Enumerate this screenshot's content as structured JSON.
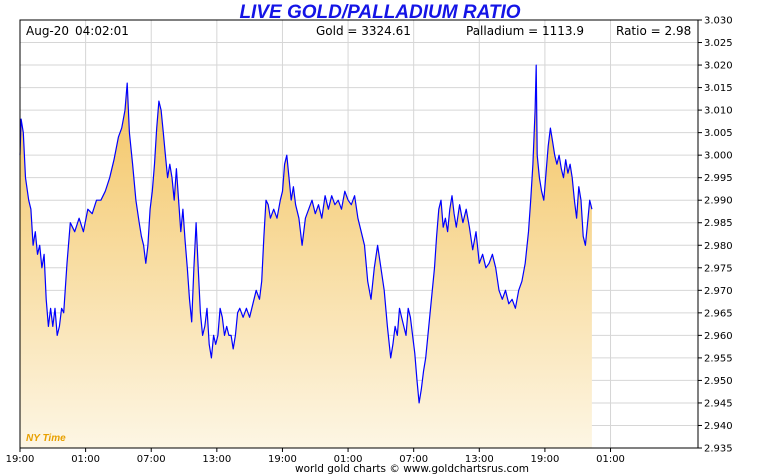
{
  "header": {
    "date": "Aug-20",
    "time": "04:02:01",
    "gold": "Gold = 3324.61",
    "palladium": "Palladium = 1113.9",
    "ratio": "Ratio = 2.98"
  },
  "footer": "world gold charts © www.goldchartsrus.com",
  "colors": {
    "line": "#0000ff",
    "fill_top": "#f3c25c",
    "fill_bottom": "#fdf6e4",
    "title": "#1414e6",
    "timezone": "#e8a000"
  },
  "chart_data": {
    "type": "area",
    "title": "LIVE GOLD/PALLADIUM RATIO",
    "timezone_label": "NY Time",
    "xlabel": "",
    "ylabel": "",
    "ylim": [
      2.935,
      3.03
    ],
    "xlim": [
      0,
      62
    ],
    "grid": true,
    "yticks": [
      "2.935",
      "2.940",
      "2.945",
      "2.950",
      "2.955",
      "2.960",
      "2.965",
      "2.970",
      "2.975",
      "2.980",
      "2.985",
      "2.990",
      "2.995",
      "3.000",
      "3.005",
      "3.010",
      "3.015",
      "3.020",
      "3.025",
      "3.030"
    ],
    "xticks": [
      {
        "x": 0,
        "label": "19:00"
      },
      {
        "x": 6,
        "label": "01:00"
      },
      {
        "x": 12,
        "label": "07:00"
      },
      {
        "x": 18,
        "label": "13:00"
      },
      {
        "x": 24,
        "label": "19:00"
      },
      {
        "x": 30,
        "label": "01:00"
      },
      {
        "x": 36,
        "label": "07:00"
      },
      {
        "x": 42,
        "label": "13:00"
      },
      {
        "x": 48,
        "label": "19:00"
      },
      {
        "x": 54,
        "label": "01:00"
      }
    ],
    "series": [
      {
        "points": [
          [
            0.0,
            3.0
          ],
          [
            0.1,
            3.008
          ],
          [
            0.3,
            3.005
          ],
          [
            0.5,
            2.995
          ],
          [
            0.8,
            2.99
          ],
          [
            1.0,
            2.988
          ],
          [
            1.2,
            2.98
          ],
          [
            1.4,
            2.983
          ],
          [
            1.6,
            2.978
          ],
          [
            1.8,
            2.98
          ],
          [
            2.0,
            2.975
          ],
          [
            2.2,
            2.978
          ],
          [
            2.4,
            2.968
          ],
          [
            2.6,
            2.962
          ],
          [
            2.8,
            2.966
          ],
          [
            3.0,
            2.962
          ],
          [
            3.2,
            2.966
          ],
          [
            3.4,
            2.96
          ],
          [
            3.6,
            2.962
          ],
          [
            3.8,
            2.966
          ],
          [
            4.0,
            2.965
          ],
          [
            4.3,
            2.976
          ],
          [
            4.6,
            2.985
          ],
          [
            5.0,
            2.983
          ],
          [
            5.4,
            2.986
          ],
          [
            5.8,
            2.983
          ],
          [
            6.2,
            2.988
          ],
          [
            6.6,
            2.987
          ],
          [
            7.0,
            2.99
          ],
          [
            7.4,
            2.99
          ],
          [
            7.8,
            2.992
          ],
          [
            8.2,
            2.995
          ],
          [
            8.6,
            2.999
          ],
          [
            9.0,
            3.004
          ],
          [
            9.3,
            3.006
          ],
          [
            9.6,
            3.01
          ],
          [
            9.8,
            3.016
          ],
          [
            10.0,
            3.005
          ],
          [
            10.3,
            2.998
          ],
          [
            10.6,
            2.99
          ],
          [
            10.9,
            2.985
          ],
          [
            11.1,
            2.982
          ],
          [
            11.3,
            2.98
          ],
          [
            11.5,
            2.976
          ],
          [
            11.7,
            2.98
          ],
          [
            11.9,
            2.988
          ],
          [
            12.1,
            2.992
          ],
          [
            12.3,
            2.998
          ],
          [
            12.5,
            3.006
          ],
          [
            12.7,
            3.012
          ],
          [
            12.9,
            3.01
          ],
          [
            13.1,
            3.005
          ],
          [
            13.3,
            3.0
          ],
          [
            13.5,
            2.995
          ],
          [
            13.7,
            2.998
          ],
          [
            13.9,
            2.995
          ],
          [
            14.1,
            2.99
          ],
          [
            14.3,
            2.997
          ],
          [
            14.5,
            2.99
          ],
          [
            14.7,
            2.983
          ],
          [
            14.9,
            2.988
          ],
          [
            15.1,
            2.981
          ],
          [
            15.3,
            2.975
          ],
          [
            15.5,
            2.968
          ],
          [
            15.7,
            2.963
          ],
          [
            15.9,
            2.975
          ],
          [
            16.1,
            2.985
          ],
          [
            16.3,
            2.975
          ],
          [
            16.5,
            2.965
          ],
          [
            16.7,
            2.96
          ],
          [
            16.9,
            2.962
          ],
          [
            17.1,
            2.966
          ],
          [
            17.3,
            2.958
          ],
          [
            17.5,
            2.955
          ],
          [
            17.7,
            2.96
          ],
          [
            17.9,
            2.958
          ],
          [
            18.1,
            2.96
          ],
          [
            18.3,
            2.966
          ],
          [
            18.5,
            2.964
          ],
          [
            18.7,
            2.96
          ],
          [
            18.9,
            2.962
          ],
          [
            19.1,
            2.96
          ],
          [
            19.3,
            2.96
          ],
          [
            19.5,
            2.957
          ],
          [
            19.7,
            2.96
          ],
          [
            19.9,
            2.965
          ],
          [
            20.1,
            2.966
          ],
          [
            20.4,
            2.964
          ],
          [
            20.7,
            2.966
          ],
          [
            21.0,
            2.964
          ],
          [
            21.3,
            2.967
          ],
          [
            21.6,
            2.97
          ],
          [
            21.9,
            2.968
          ],
          [
            22.1,
            2.972
          ],
          [
            22.3,
            2.982
          ],
          [
            22.5,
            2.99
          ],
          [
            22.7,
            2.989
          ],
          [
            22.9,
            2.986
          ],
          [
            23.2,
            2.988
          ],
          [
            23.5,
            2.986
          ],
          [
            23.8,
            2.99
          ],
          [
            24.0,
            2.992
          ],
          [
            24.2,
            2.998
          ],
          [
            24.4,
            3.0
          ],
          [
            24.6,
            2.995
          ],
          [
            24.8,
            2.99
          ],
          [
            25.0,
            2.993
          ],
          [
            25.2,
            2.989
          ],
          [
            25.5,
            2.986
          ],
          [
            25.8,
            2.98
          ],
          [
            26.1,
            2.986
          ],
          [
            26.4,
            2.988
          ],
          [
            26.7,
            2.99
          ],
          [
            27.0,
            2.987
          ],
          [
            27.3,
            2.989
          ],
          [
            27.6,
            2.986
          ],
          [
            27.9,
            2.991
          ],
          [
            28.2,
            2.988
          ],
          [
            28.5,
            2.991
          ],
          [
            28.8,
            2.989
          ],
          [
            29.1,
            2.99
          ],
          [
            29.4,
            2.988
          ],
          [
            29.7,
            2.992
          ],
          [
            30.0,
            2.99
          ],
          [
            30.3,
            2.989
          ],
          [
            30.6,
            2.991
          ],
          [
            30.9,
            2.986
          ],
          [
            31.2,
            2.983
          ],
          [
            31.5,
            2.98
          ],
          [
            31.8,
            2.972
          ],
          [
            32.1,
            2.968
          ],
          [
            32.4,
            2.975
          ],
          [
            32.7,
            2.98
          ],
          [
            33.0,
            2.975
          ],
          [
            33.3,
            2.97
          ],
          [
            33.6,
            2.962
          ],
          [
            33.9,
            2.955
          ],
          [
            34.1,
            2.958
          ],
          [
            34.3,
            2.962
          ],
          [
            34.5,
            2.96
          ],
          [
            34.7,
            2.966
          ],
          [
            34.9,
            2.964
          ],
          [
            35.1,
            2.962
          ],
          [
            35.3,
            2.96
          ],
          [
            35.5,
            2.966
          ],
          [
            35.7,
            2.964
          ],
          [
            35.9,
            2.96
          ],
          [
            36.1,
            2.956
          ],
          [
            36.3,
            2.95
          ],
          [
            36.5,
            2.945
          ],
          [
            36.7,
            2.948
          ],
          [
            36.9,
            2.952
          ],
          [
            37.1,
            2.955
          ],
          [
            37.3,
            2.96
          ],
          [
            37.5,
            2.965
          ],
          [
            37.7,
            2.97
          ],
          [
            37.9,
            2.975
          ],
          [
            38.1,
            2.982
          ],
          [
            38.3,
            2.988
          ],
          [
            38.5,
            2.99
          ],
          [
            38.7,
            2.984
          ],
          [
            38.9,
            2.986
          ],
          [
            39.1,
            2.983
          ],
          [
            39.3,
            2.988
          ],
          [
            39.5,
            2.991
          ],
          [
            39.7,
            2.987
          ],
          [
            39.9,
            2.984
          ],
          [
            40.2,
            2.989
          ],
          [
            40.5,
            2.985
          ],
          [
            40.8,
            2.988
          ],
          [
            41.1,
            2.984
          ],
          [
            41.4,
            2.979
          ],
          [
            41.7,
            2.983
          ],
          [
            42.0,
            2.976
          ],
          [
            42.3,
            2.978
          ],
          [
            42.6,
            2.975
          ],
          [
            42.9,
            2.976
          ],
          [
            43.2,
            2.978
          ],
          [
            43.5,
            2.975
          ],
          [
            43.8,
            2.97
          ],
          [
            44.1,
            2.968
          ],
          [
            44.4,
            2.97
          ],
          [
            44.7,
            2.967
          ],
          [
            45.0,
            2.968
          ],
          [
            45.3,
            2.966
          ],
          [
            45.6,
            2.97
          ],
          [
            45.9,
            2.972
          ],
          [
            46.2,
            2.976
          ],
          [
            46.5,
            2.983
          ],
          [
            46.7,
            2.99
          ],
          [
            46.9,
            2.998
          ],
          [
            47.1,
            3.01
          ],
          [
            47.2,
            3.02
          ],
          [
            47.3,
            3.0
          ],
          [
            47.5,
            2.995
          ],
          [
            47.7,
            2.992
          ],
          [
            47.9,
            2.99
          ],
          [
            48.1,
            2.996
          ],
          [
            48.3,
            3.002
          ],
          [
            48.5,
            3.006
          ],
          [
            48.7,
            3.003
          ],
          [
            48.9,
            3.0
          ],
          [
            49.1,
            2.998
          ],
          [
            49.3,
            3.0
          ],
          [
            49.5,
            2.997
          ],
          [
            49.7,
            2.995
          ],
          [
            49.9,
            2.999
          ],
          [
            50.1,
            2.996
          ],
          [
            50.3,
            2.998
          ],
          [
            50.5,
            2.995
          ],
          [
            50.7,
            2.99
          ],
          [
            50.9,
            2.986
          ],
          [
            51.1,
            2.993
          ],
          [
            51.3,
            2.99
          ],
          [
            51.5,
            2.982
          ],
          [
            51.7,
            2.98
          ],
          [
            51.9,
            2.985
          ],
          [
            52.1,
            2.99
          ],
          [
            52.3,
            2.988
          ]
        ]
      }
    ]
  }
}
